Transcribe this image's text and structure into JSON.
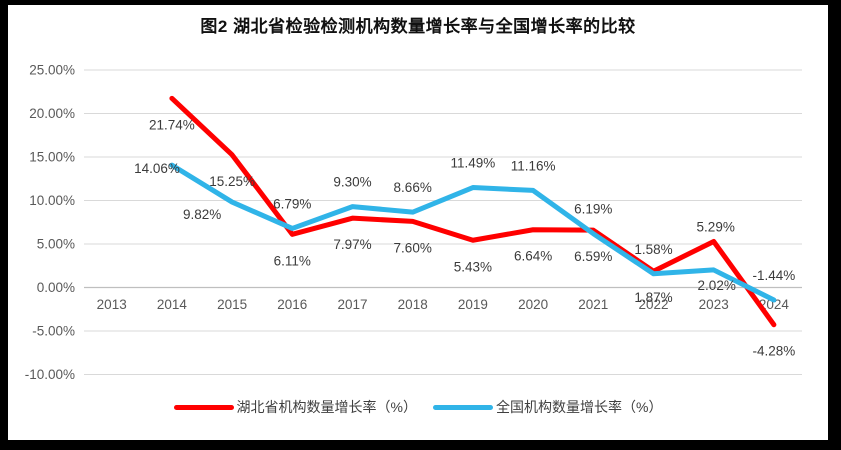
{
  "title": "图2 湖北省检验检测机构数量增长率与全国增长率的比较",
  "chart_data": {
    "type": "line",
    "categories": [
      "2013",
      "2014",
      "2015",
      "2016",
      "2017",
      "2018",
      "2019",
      "2020",
      "2021",
      "2022",
      "2023",
      "2024"
    ],
    "series": [
      {
        "name": "湖北省机构数量增长率（%）",
        "color": "#FF0000",
        "values": [
          null,
          21.74,
          15.25,
          6.11,
          7.97,
          7.6,
          5.43,
          6.64,
          6.59,
          1.87,
          5.29,
          -4.28
        ],
        "labels": [
          null,
          "21.74%",
          "15.25%",
          "6.11%",
          "7.97%",
          "7.60%",
          "5.43%",
          "6.64%",
          "6.59%",
          "1.87%",
          "5.29%",
          "-4.28%"
        ],
        "label_positions": [
          null,
          "below",
          "below",
          "below",
          "below",
          "below",
          "below",
          "below",
          "below",
          "below",
          "above-near",
          "below"
        ]
      },
      {
        "name": "全国机构数量增长率（%）",
        "color": "#30B4E8",
        "values": [
          null,
          14.06,
          9.82,
          6.79,
          9.3,
          8.66,
          11.49,
          11.16,
          6.19,
          1.58,
          2.02,
          -1.44
        ],
        "labels": [
          null,
          "14.06%",
          "9.82%",
          "6.79%",
          "9.30%",
          "8.66%",
          "11.49%",
          "11.16%",
          "6.19%",
          "1.58%",
          "2.02%",
          "-1.44%"
        ],
        "label_positions": [
          null,
          "left",
          "below-left",
          "above",
          "above",
          "above",
          "above",
          "above",
          "above",
          "above",
          "below-near",
          "above"
        ]
      }
    ],
    "y_axis": {
      "min": -10,
      "max": 25,
      "step": 5,
      "tick_labels": [
        "25.00%",
        "20.00%",
        "15.00%",
        "10.00%",
        "5.00%",
        "0.00%",
        "-5.00%",
        "-10.00%"
      ]
    },
    "grid": true,
    "legend_position": "bottom"
  },
  "colors": {
    "frame": "#000000",
    "canvas": "#FFFFFF",
    "gridline": "#D9D9D9",
    "zero_axis_line": "#BFBFBF",
    "axis_text": "#595959",
    "data_label_text": "#3b3b3b"
  }
}
